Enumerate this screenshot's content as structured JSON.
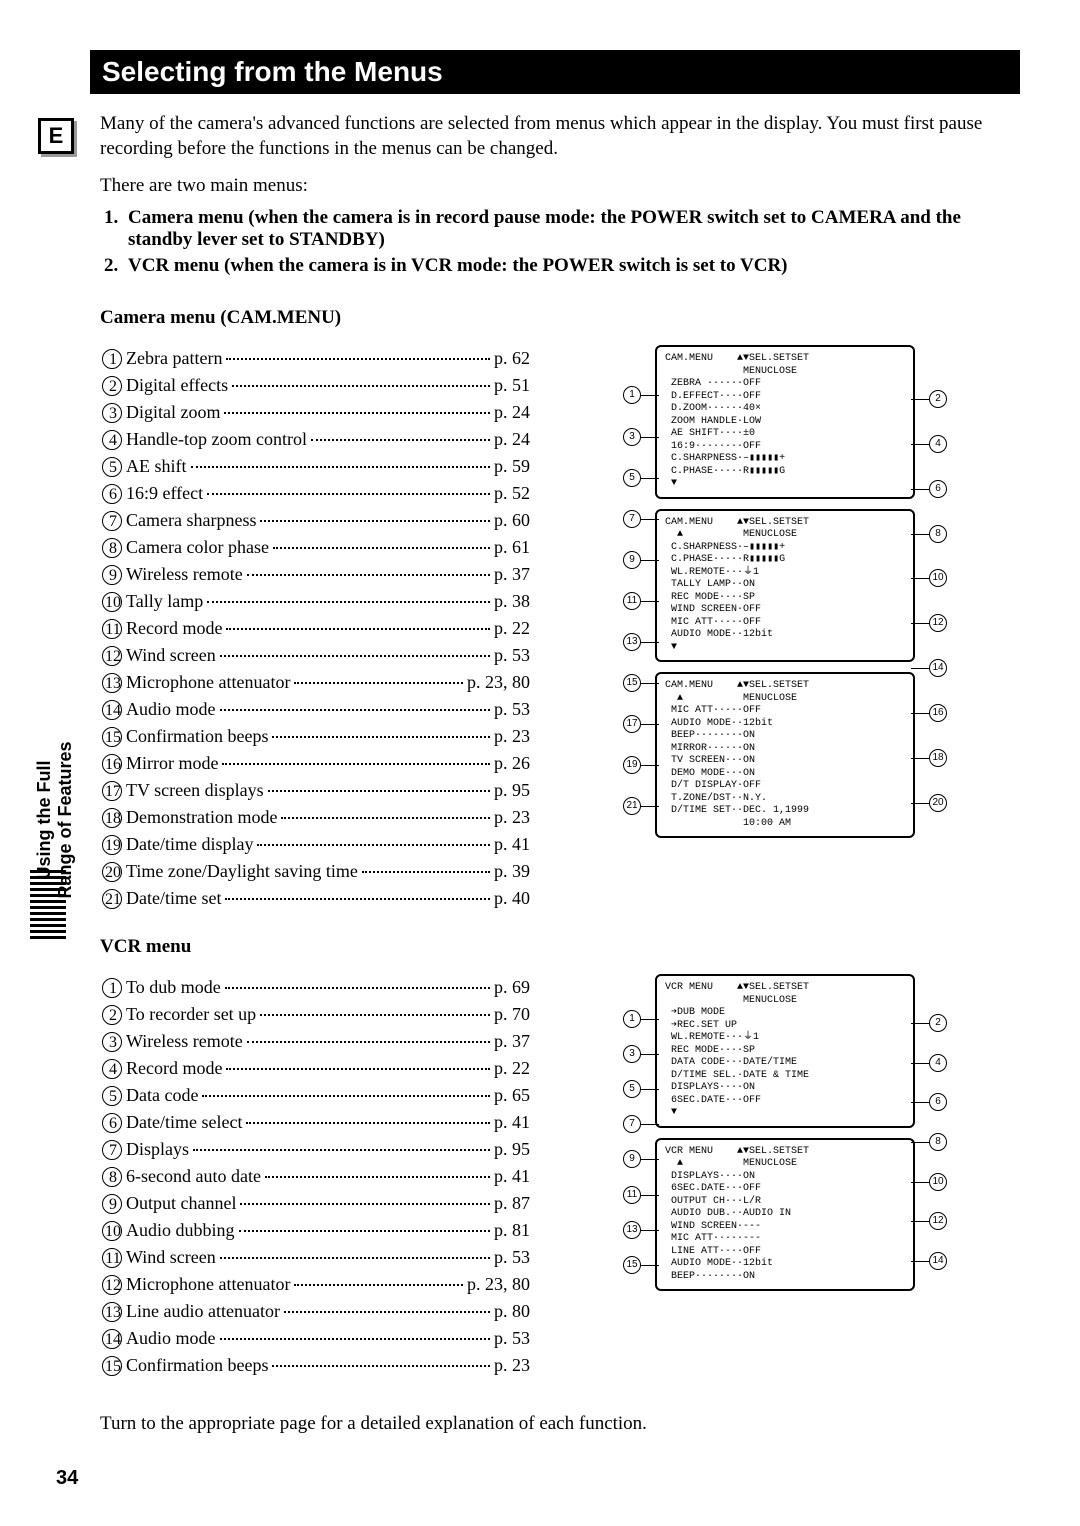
{
  "page_number": "34",
  "e_tab": "E",
  "sidebar_text": "Using the Full\nRange of Features",
  "title": "Selecting from the Menus",
  "intro": "Many of the camera's advanced functions are selected from menus which appear in the display. You must first pause recording before the functions in the menus can be changed.",
  "two_main": "There are two main menus:",
  "menus": [
    {
      "n": "1.",
      "t": "Camera menu (when the camera is in record pause mode: the POWER switch set to CAMERA and the standby lever set to STANDBY)"
    },
    {
      "n": "2.",
      "t": "VCR menu (when the camera is in VCR mode: the POWER switch is set to VCR)"
    }
  ],
  "camera_heading": "Camera menu (CAM.MENU)",
  "camera_items": [
    {
      "n": "1",
      "label": "Zebra pattern",
      "page": "p. 62"
    },
    {
      "n": "2",
      "label": "Digital effects",
      "page": "p. 51"
    },
    {
      "n": "3",
      "label": "Digital zoom",
      "page": "p. 24"
    },
    {
      "n": "4",
      "label": "Handle-top zoom control",
      "page": "p. 24"
    },
    {
      "n": "5",
      "label": "AE shift",
      "page": "p. 59"
    },
    {
      "n": "6",
      "label": "16:9 effect",
      "page": "p. 52"
    },
    {
      "n": "7",
      "label": "Camera sharpness",
      "page": "p. 60"
    },
    {
      "n": "8",
      "label": "Camera color phase",
      "page": "p. 61"
    },
    {
      "n": "9",
      "label": "Wireless remote",
      "page": "p. 37"
    },
    {
      "n": "10",
      "label": "Tally lamp",
      "page": "p. 38"
    },
    {
      "n": "11",
      "label": "Record mode",
      "page": "p. 22"
    },
    {
      "n": "12",
      "label": "Wind screen",
      "page": "p. 53"
    },
    {
      "n": "13",
      "label": "Microphone attenuator",
      "page": "p. 23, 80"
    },
    {
      "n": "14",
      "label": "Audio mode",
      "page": "p. 53"
    },
    {
      "n": "15",
      "label": "Confirmation beeps",
      "page": "p. 23"
    },
    {
      "n": "16",
      "label": "Mirror mode",
      "page": "p. 26"
    },
    {
      "n": "17",
      "label": "TV screen displays",
      "page": "p. 95"
    },
    {
      "n": "18",
      "label": "Demonstration mode",
      "page": "p. 23"
    },
    {
      "n": "19",
      "label": "Date/time display",
      "page": "p. 41"
    },
    {
      "n": "20",
      "label": "Time zone/Daylight saving time",
      "page": "p. 39"
    },
    {
      "n": "21",
      "label": "Date/time set",
      "page": "p. 40"
    }
  ],
  "vcr_heading": "VCR menu",
  "vcr_items": [
    {
      "n": "1",
      "label": "To dub mode",
      "page": "p. 69"
    },
    {
      "n": "2",
      "label": "To recorder set up",
      "page": "p. 70"
    },
    {
      "n": "3",
      "label": "Wireless remote",
      "page": "p. 37"
    },
    {
      "n": "4",
      "label": "Record mode",
      "page": "p. 22"
    },
    {
      "n": "5",
      "label": "Data code",
      "page": "p. 65"
    },
    {
      "n": "6",
      "label": "Date/time select",
      "page": "p. 41"
    },
    {
      "n": "7",
      "label": "Displays",
      "page": "p. 95"
    },
    {
      "n": "8",
      "label": "6-second auto date",
      "page": "p. 41"
    },
    {
      "n": "9",
      "label": "Output channel",
      "page": "p. 87"
    },
    {
      "n": "10",
      "label": "Audio dubbing",
      "page": "p. 81"
    },
    {
      "n": "11",
      "label": "Wind screen",
      "page": "p. 53"
    },
    {
      "n": "12",
      "label": "Microphone attenuator",
      "page": "p. 23, 80"
    },
    {
      "n": "13",
      "label": "Line audio attenuator",
      "page": "p. 80"
    },
    {
      "n": "14",
      "label": "Audio mode",
      "page": "p. 53"
    },
    {
      "n": "15",
      "label": "Confirmation beeps",
      "page": "p. 23"
    }
  ],
  "bottom_note": "Turn to the appropriate page for a detailed explanation of each function.",
  "lcd_camera": [
    "CAM.MENU    ▲▼SEL.SETSET\n             MENUCLOSE\n ZEBRA ······OFF\n D.EFFECT····OFF\n D.ZOOM······40×\n ZOOM HANDLE·LOW\n AE SHIFT····±0\n 16:9········OFF\n C.SHARPNESS·–▮▮▮▮▮+\n C.PHASE·····R▮▮▮▮▮G\n ▼",
    "CAM.MENU    ▲▼SEL.SETSET\n  ▲          MENUCLOSE\n C.SHARPNESS·–▮▮▮▮▮+\n C.PHASE·····R▮▮▮▮▮G\n WL.REMOTE···⏚1\n TALLY LAMP··ON\n REC MODE····SP\n WIND SCREEN·OFF\n MIC ATT·····OFF\n AUDIO MODE··12bit\n ▼",
    "CAM.MENU    ▲▼SEL.SETSET\n  ▲          MENUCLOSE\n MIC ATT·····OFF\n AUDIO MODE··12bit\n BEEP········ON\n MIRROR······ON\n TV SCREEN···ON\n DEMO MODE···ON\n D/T DISPLAY·OFF\n T.ZONE/DST··N.Y.\n D/TIME SET··DEC. 1,1999\n             10:00 AM"
  ],
  "lcd_vcr": [
    "VCR MENU    ▲▼SEL.SETSET\n             MENUCLOSE\n ➔DUB MODE\n ➔REC.SET UP\n WL.REMOTE···⏚1\n REC MODE····SP\n DATA CODE···DATE/TIME\n D/TIME SEL.·DATE & TIME\n DISPLAYS····ON\n 6SEC.DATE···OFF\n ▼",
    "VCR MENU    ▲▼SEL.SETSET\n  ▲          MENUCLOSE\n DISPLAYS····ON\n 6SEC.DATE···OFF\n OUTPUT CH···L/R\n AUDIO DUB.··AUDIO IN\n WIND SCREEN·---\n MIC ATT·····---\n LINE ATT····OFF\n AUDIO MODE··12bit\n BEEP········ON"
  ],
  "cam_callouts_left": [
    "1",
    "3",
    "5",
    "7",
    "9",
    "11",
    "13",
    "15",
    "17",
    "19",
    "21"
  ],
  "cam_callouts_right": [
    "2",
    "4",
    "6",
    "8",
    "10",
    "12",
    "14",
    "16",
    "18",
    "20"
  ],
  "vcr_callouts_left": [
    "1",
    "3",
    "5",
    "7",
    "9",
    "11",
    "13",
    "15"
  ],
  "vcr_callouts_right": [
    "2",
    "4",
    "6",
    "8",
    "10",
    "12",
    "14"
  ]
}
